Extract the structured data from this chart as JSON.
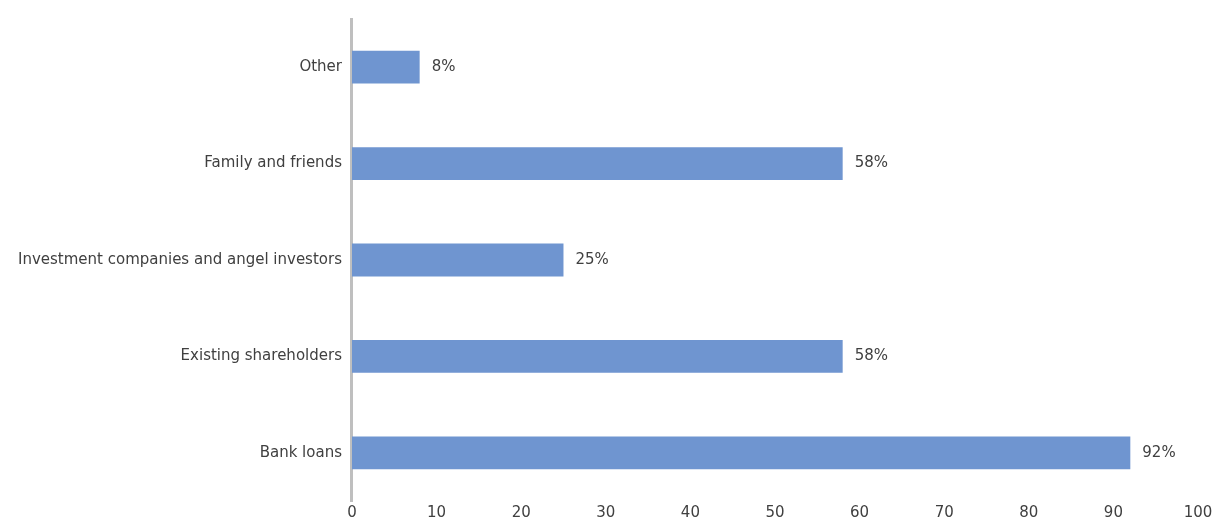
{
  "chart_data": {
    "type": "bar",
    "orientation": "horizontal",
    "categories": [
      "Other",
      "Family and friends",
      "Investment companies and angel investors",
      "Existing shareholders",
      "Bank loans"
    ],
    "values": [
      8,
      58,
      25,
      58,
      92
    ],
    "value_labels": [
      "8%",
      "58%",
      "25%",
      "58%",
      "92%"
    ],
    "color": "#6f95d0",
    "xlim": [
      0,
      100
    ],
    "xticks": [
      0,
      10,
      20,
      30,
      40,
      50,
      60,
      70,
      80,
      90,
      100
    ],
    "legend": false
  }
}
